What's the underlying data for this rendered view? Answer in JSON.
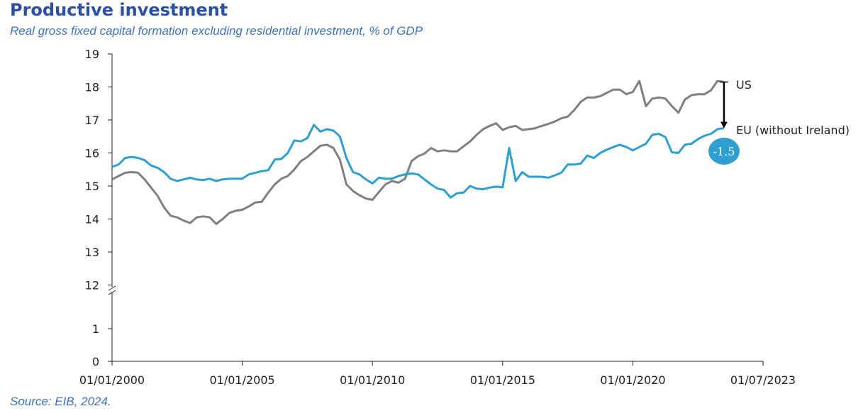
{
  "title": "Productive investment",
  "subtitle": "Real gross fixed capital formation excluding residential investment, % of GDP",
  "source": "Source: EIB, 2024.",
  "colors": {
    "us": "#808080",
    "eu": "#2e9fd0",
    "title": "#2b4fa3",
    "subtitle": "#3b73c4",
    "badge": "#2e9fd0"
  },
  "gap_badge": "-1.5",
  "chart_data": {
    "type": "line",
    "title": "Productive investment",
    "subtitle": "Real gross fixed capital formation excluding residential investment, % of GDP",
    "xlabel": "",
    "ylabel": "",
    "x_ticks": [
      "01/01/2000",
      "01/01/2005",
      "01/01/2010",
      "01/01/2015",
      "01/01/2020",
      "01/07/2023"
    ],
    "y_ticks": [
      "0",
      "1",
      "12",
      "13",
      "14",
      "15",
      "16",
      "17",
      "18",
      "19"
    ],
    "axis_break": "between 1 and 12",
    "xlim": [
      "2000-01-01",
      "2025-01-01"
    ],
    "grid": false,
    "annotation": "-1.5",
    "series": [
      {
        "name": "US",
        "x": [
          2000.0,
          2000.25,
          2000.5,
          2000.75,
          2001.0,
          2001.25,
          2001.5,
          2001.75,
          2002.0,
          2002.25,
          2002.5,
          2002.75,
          2003.0,
          2003.25,
          2003.5,
          2003.75,
          2004.0,
          2004.25,
          2004.5,
          2004.75,
          2005.0,
          2005.25,
          2005.5,
          2005.75,
          2006.0,
          2006.25,
          2006.5,
          2006.75,
          2007.0,
          2007.25,
          2007.5,
          2007.75,
          2008.0,
          2008.25,
          2008.5,
          2008.75,
          2009.0,
          2009.25,
          2009.5,
          2009.75,
          2010.0,
          2010.25,
          2010.5,
          2010.75,
          2011.0,
          2011.25,
          2011.5,
          2011.75,
          2012.0,
          2012.25,
          2012.5,
          2012.75,
          2013.0,
          2013.25,
          2013.5,
          2013.75,
          2014.0,
          2014.25,
          2014.5,
          2014.75,
          2015.0,
          2015.25,
          2015.5,
          2015.75,
          2016.0,
          2016.25,
          2016.5,
          2016.75,
          2017.0,
          2017.25,
          2017.5,
          2017.75,
          2018.0,
          2018.25,
          2018.5,
          2018.75,
          2019.0,
          2019.25,
          2019.5,
          2019.75,
          2020.0,
          2020.25,
          2020.5,
          2020.75,
          2021.0,
          2021.25,
          2021.5,
          2021.75,
          2022.0,
          2022.25,
          2022.5,
          2022.75,
          2023.0,
          2023.25,
          2023.5
        ],
        "values": [
          15.2,
          15.3,
          15.4,
          15.42,
          15.4,
          15.2,
          14.95,
          14.7,
          14.35,
          14.1,
          14.05,
          13.95,
          13.88,
          14.05,
          14.08,
          14.05,
          13.85,
          14.0,
          14.18,
          14.25,
          14.28,
          14.38,
          14.5,
          14.52,
          14.8,
          15.05,
          15.22,
          15.3,
          15.5,
          15.75,
          15.88,
          16.05,
          16.22,
          16.25,
          16.15,
          15.8,
          15.05,
          14.85,
          14.72,
          14.62,
          14.58,
          14.82,
          15.05,
          15.15,
          15.1,
          15.22,
          15.75,
          15.9,
          15.98,
          16.15,
          16.05,
          16.08,
          16.05,
          16.05,
          16.2,
          16.35,
          16.55,
          16.72,
          16.82,
          16.9,
          16.7,
          16.78,
          16.82,
          16.7,
          16.72,
          16.75,
          16.82,
          16.88,
          16.95,
          17.05,
          17.1,
          17.3,
          17.55,
          17.68,
          17.68,
          17.72,
          17.82,
          17.92,
          17.92,
          17.78,
          17.85,
          18.18,
          17.42,
          17.65,
          17.68,
          17.65,
          17.42,
          17.22,
          17.62,
          17.75,
          17.78,
          17.78,
          17.9,
          18.18,
          18.15
        ]
      },
      {
        "name": "EU (without Ireland)",
        "x": [
          2000.0,
          2000.25,
          2000.5,
          2000.75,
          2001.0,
          2001.25,
          2001.5,
          2001.75,
          2002.0,
          2002.25,
          2002.5,
          2002.75,
          2003.0,
          2003.25,
          2003.5,
          2003.75,
          2004.0,
          2004.25,
          2004.5,
          2004.75,
          2005.0,
          2005.25,
          2005.5,
          2005.75,
          2006.0,
          2006.25,
          2006.5,
          2006.75,
          2007.0,
          2007.25,
          2007.5,
          2007.75,
          2008.0,
          2008.25,
          2008.5,
          2008.75,
          2009.0,
          2009.25,
          2009.5,
          2009.75,
          2010.0,
          2010.25,
          2010.5,
          2010.75,
          2011.0,
          2011.25,
          2011.5,
          2011.75,
          2012.0,
          2012.25,
          2012.5,
          2012.75,
          2013.0,
          2013.25,
          2013.5,
          2013.75,
          2014.0,
          2014.25,
          2014.5,
          2014.75,
          2015.0,
          2015.25,
          2015.5,
          2015.75,
          2016.0,
          2016.25,
          2016.5,
          2016.75,
          2017.0,
          2017.25,
          2017.5,
          2017.75,
          2018.0,
          2018.25,
          2018.5,
          2018.75,
          2019.0,
          2019.25,
          2019.5,
          2019.75,
          2020.0,
          2020.25,
          2020.5,
          2020.75,
          2021.0,
          2021.25,
          2021.5,
          2021.75,
          2022.0,
          2022.25,
          2022.5,
          2022.75,
          2023.0,
          2023.25,
          2023.5
        ],
        "values": [
          15.58,
          15.65,
          15.85,
          15.88,
          15.85,
          15.78,
          15.62,
          15.55,
          15.42,
          15.22,
          15.15,
          15.2,
          15.25,
          15.2,
          15.18,
          15.22,
          15.15,
          15.2,
          15.22,
          15.22,
          15.22,
          15.35,
          15.4,
          15.45,
          15.48,
          15.8,
          15.82,
          16.0,
          16.38,
          16.35,
          16.45,
          16.85,
          16.65,
          16.72,
          16.68,
          16.5,
          15.85,
          15.42,
          15.35,
          15.2,
          15.08,
          15.25,
          15.22,
          15.22,
          15.3,
          15.35,
          15.38,
          15.35,
          15.2,
          15.05,
          14.92,
          14.88,
          14.65,
          14.78,
          14.8,
          15.0,
          14.92,
          14.9,
          14.95,
          14.98,
          14.96,
          16.15,
          15.15,
          15.42,
          15.28,
          15.28,
          15.28,
          15.25,
          15.32,
          15.4,
          15.65,
          15.65,
          15.68,
          15.92,
          15.85,
          16.0,
          16.1,
          16.18,
          16.25,
          16.18,
          16.08,
          16.18,
          16.28,
          16.55,
          16.58,
          16.48,
          16.02,
          16.0,
          16.25,
          16.28,
          16.42,
          16.52,
          16.58,
          16.72,
          16.75
        ]
      }
    ]
  }
}
